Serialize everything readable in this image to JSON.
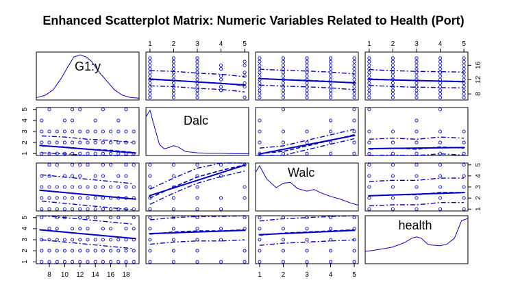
{
  "chart_data": {
    "type": "scatter",
    "title": "Enhanced Scatterplot Matrix: Numeric Variables Related to Health (Port)",
    "variables": [
      "G1:y",
      "Dalc",
      "Walc",
      "health"
    ],
    "ticks": {
      "G1:y": [
        "8",
        "10",
        "12",
        "14",
        "16",
        "18"
      ],
      "G1:y_right": [
        "8",
        "12",
        "16"
      ],
      "Dalc": [
        "1",
        "2",
        "3",
        "4",
        "5"
      ],
      "Walc": [
        "1",
        "2",
        "3",
        "4",
        "5"
      ],
      "health": [
        "1",
        "2",
        "3",
        "4",
        "5"
      ]
    },
    "ranges": {
      "G1:y": [
        6.3,
        19.7
      ],
      "Dalc": [
        0.83,
        5.17
      ],
      "Walc": [
        0.83,
        5.17
      ],
      "health": [
        0.83,
        5.17
      ]
    },
    "density": {
      "G1:y": {
        "x": [
          6.3,
          7.5,
          8.5,
          9.5,
          10.5,
          11.2,
          12,
          12.8,
          13.5,
          14.5,
          15.5,
          16.5,
          17.5,
          18.5,
          19.7
        ],
        "y": [
          0.02,
          0.08,
          0.2,
          0.45,
          0.75,
          0.95,
          1.0,
          0.95,
          0.85,
          0.6,
          0.4,
          0.2,
          0.08,
          0.03,
          0.01
        ]
      },
      "Dalc": {
        "x": [
          0.83,
          1.0,
          1.2,
          1.4,
          1.6,
          1.8,
          2.0,
          2.2,
          2.5,
          3.0,
          3.5,
          4.0,
          4.5,
          5.17
        ],
        "y": [
          0.85,
          1.0,
          0.6,
          0.22,
          0.12,
          0.15,
          0.19,
          0.16,
          0.06,
          0.03,
          0.02,
          0.02,
          0.01,
          0.01
        ]
      },
      "Walc": {
        "x": [
          0.83,
          1.0,
          1.3,
          1.7,
          2.0,
          2.3,
          2.6,
          3.0,
          3.3,
          3.6,
          4.0,
          4.4,
          4.8,
          5.17
        ],
        "y": [
          0.85,
          1.0,
          0.7,
          0.5,
          0.6,
          0.62,
          0.48,
          0.42,
          0.46,
          0.38,
          0.3,
          0.24,
          0.16,
          0.1
        ]
      },
      "health": {
        "x": [
          0.83,
          1.0,
          1.5,
          2.0,
          2.5,
          2.8,
          3.0,
          3.2,
          3.5,
          4.0,
          4.3,
          4.6,
          4.9,
          5.17
        ],
        "y": [
          0.25,
          0.26,
          0.3,
          0.35,
          0.45,
          0.55,
          0.58,
          0.55,
          0.4,
          0.38,
          0.42,
          0.55,
          0.95,
          1.0
        ]
      }
    },
    "pairs": [
      {
        "x": "Dalc",
        "y": "G1:y",
        "fit": [
          12.2,
          10.5
        ],
        "smooth": [
          [
            1,
            12.0
          ],
          [
            2,
            11.8
          ],
          [
            3,
            11.3
          ],
          [
            4,
            11.0
          ],
          [
            5,
            10.3
          ]
        ],
        "spread": 2.5
      },
      {
        "x": "Walc",
        "y": "G1:y",
        "fit": [
          12.3,
          11.1
        ],
        "smooth": [
          [
            1,
            12.3
          ],
          [
            2,
            12.0
          ],
          [
            3,
            11.8
          ],
          [
            4,
            11.5
          ],
          [
            5,
            11.0
          ]
        ],
        "spread": 2.6
      },
      {
        "x": "health",
        "y": "G1:y",
        "fit": [
          12.1,
          11.4
        ],
        "smooth": [
          [
            1,
            12.2
          ],
          [
            2,
            11.9
          ],
          [
            3,
            11.7
          ],
          [
            4,
            11.6
          ],
          [
            5,
            11.5
          ]
        ],
        "spread": 2.6
      },
      {
        "x": "G1:y",
        "y": "Dalc",
        "fit": [
          1.75,
          1.05
        ],
        "smooth": [
          [
            7,
            1.7
          ],
          [
            10,
            1.6
          ],
          [
            13,
            1.4
          ],
          [
            16,
            1.3
          ],
          [
            19,
            1.1
          ]
        ],
        "spread": 0.9
      },
      {
        "x": "Walc",
        "y": "Dalc",
        "fit": [
          0.95,
          2.65
        ],
        "smooth": [
          [
            1,
            1.0
          ],
          [
            2,
            1.2
          ],
          [
            3,
            1.7
          ],
          [
            4,
            2.2
          ],
          [
            5,
            2.7
          ]
        ],
        "spread": 0.5
      },
      {
        "x": "health",
        "y": "Dalc",
        "fit": [
          1.45,
          1.55
        ],
        "smooth": [
          [
            1,
            1.4
          ],
          [
            2,
            1.5
          ],
          [
            3,
            1.4
          ],
          [
            4,
            1.6
          ],
          [
            5,
            1.5
          ]
        ],
        "spread": 0.9
      },
      {
        "x": "G1:y",
        "y": "Walc",
        "fit": [
          2.7,
          1.9
        ],
        "smooth": [
          [
            7,
            2.7
          ],
          [
            10,
            2.5
          ],
          [
            13,
            2.3
          ],
          [
            16,
            2.1
          ],
          [
            19,
            1.9
          ]
        ],
        "spread": 1.4
      },
      {
        "x": "Dalc",
        "y": "Walc",
        "fit": [
          2.2,
          5.0
        ],
        "smooth": [
          [
            1,
            2.0
          ],
          [
            2,
            3.0
          ],
          [
            3,
            3.9
          ],
          [
            4,
            4.5
          ],
          [
            5,
            5.0
          ]
        ],
        "spread": 0.8
      },
      {
        "x": "health",
        "y": "Walc",
        "fit": [
          2.2,
          2.5
        ],
        "smooth": [
          [
            1,
            2.2
          ],
          [
            2,
            2.3
          ],
          [
            3,
            2.3
          ],
          [
            4,
            2.5
          ],
          [
            5,
            2.5
          ]
        ],
        "spread": 1.3
      },
      {
        "x": "G1:y",
        "y": "health",
        "fit": [
          3.9,
          3.1
        ],
        "smooth": [
          [
            7,
            3.9
          ],
          [
            10,
            3.7
          ],
          [
            13,
            3.5
          ],
          [
            16,
            3.3
          ],
          [
            19,
            3.1
          ]
        ],
        "spread": 1.3
      },
      {
        "x": "Dalc",
        "y": "health",
        "fit": [
          3.55,
          3.85
        ],
        "smooth": [
          [
            1,
            3.5
          ],
          [
            2,
            3.7
          ],
          [
            3,
            3.8
          ],
          [
            4,
            3.8
          ],
          [
            5,
            3.9
          ]
        ],
        "spread": 1.3
      },
      {
        "x": "Walc",
        "y": "health",
        "fit": [
          3.45,
          3.85
        ],
        "smooth": [
          [
            1,
            3.4
          ],
          [
            2,
            3.6
          ],
          [
            3,
            3.7
          ],
          [
            4,
            3.8
          ],
          [
            5,
            3.9
          ]
        ],
        "spread": 1.3
      }
    ],
    "grid": false,
    "legend": "none",
    "colors": {
      "data": "#0000cc",
      "text": "#000000",
      "frame": "#000000"
    }
  }
}
